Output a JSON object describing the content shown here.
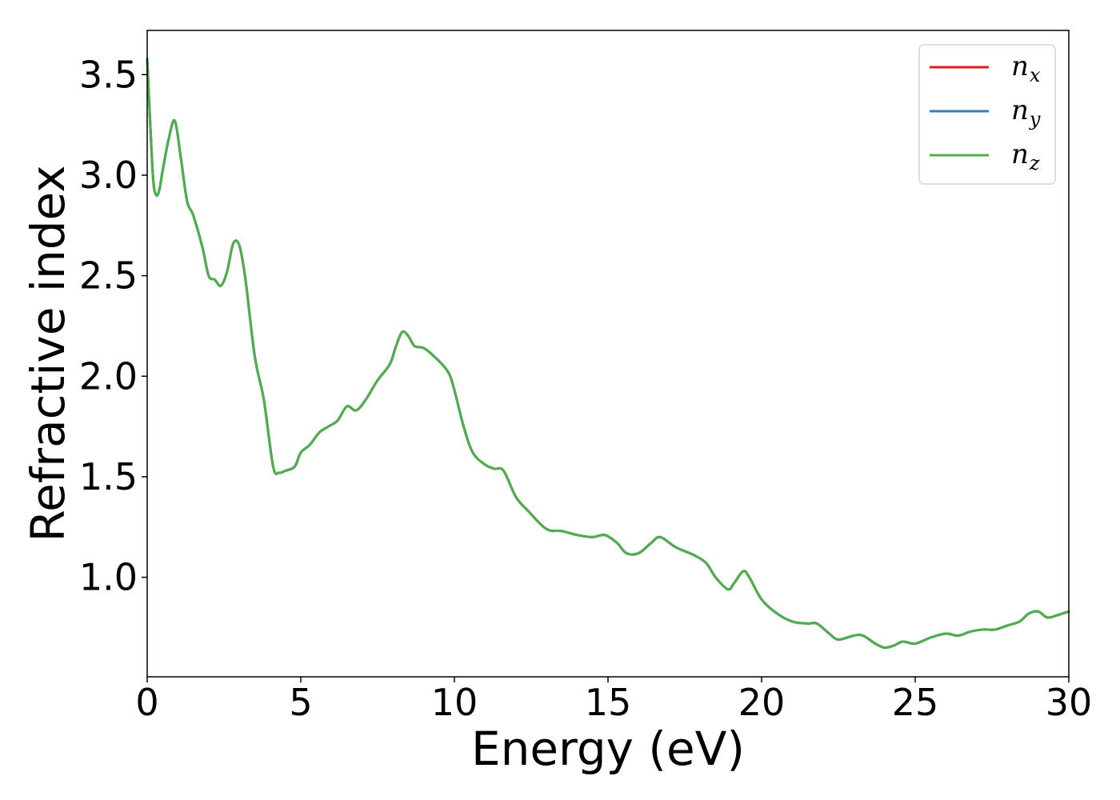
{
  "chart_data": {
    "type": "line",
    "title": "",
    "xlabel": "Energy (eV)",
    "ylabel": "Refractive index",
    "xlim": [
      0,
      30
    ],
    "ylim": [
      0.505,
      3.72
    ],
    "xticks": [
      0,
      5,
      10,
      15,
      20,
      25,
      30
    ],
    "yticks": [
      1.0,
      1.5,
      2.0,
      2.5,
      3.0,
      3.5
    ],
    "xtick_labels": [
      "0",
      "5",
      "10",
      "15",
      "20",
      "25",
      "30"
    ],
    "ytick_labels": [
      "1.0",
      "1.5",
      "2.0",
      "2.5",
      "3.0",
      "3.5"
    ],
    "grid": false,
    "legend": {
      "position": "top-right",
      "entries": [
        {
          "base": "n",
          "sub": "x",
          "color": "#e41a1c"
        },
        {
          "base": "n",
          "sub": "y",
          "color": "#377eb8"
        },
        {
          "base": "n",
          "sub": "z",
          "color": "#4daf4a"
        }
      ]
    },
    "series": [
      {
        "legend_index": 0,
        "color": "#e41a1c",
        "x": [
          0,
          0.1,
          0.2,
          0.3,
          0.4,
          0.5,
          0.7,
          0.9,
          1.1,
          1.3,
          1.5,
          1.8,
          2.0,
          2.2,
          2.4,
          2.6,
          2.8,
          3.0,
          3.2,
          3.5,
          3.8,
          4.1,
          4.3,
          4.5,
          4.8,
          5.0,
          5.3,
          5.6,
          5.9,
          6.2,
          6.5,
          6.8,
          7.1,
          7.5,
          7.9,
          8.1,
          8.3,
          8.5,
          8.7,
          9.0,
          9.4,
          9.8,
          10.0,
          10.3,
          10.6,
          11.0,
          11.3,
          11.6,
          12.0,
          12.4,
          13.0,
          13.5,
          14.0,
          14.5,
          14.9,
          15.3,
          15.6,
          16.0,
          16.4,
          16.7,
          17.2,
          17.8,
          18.2,
          18.5,
          18.9,
          19.1,
          19.4,
          19.6,
          20.0,
          20.5,
          21.0,
          21.5,
          21.8,
          22.2,
          22.5,
          23.0,
          23.3,
          23.7,
          24.0,
          24.3,
          24.6,
          25.0,
          25.5,
          26.0,
          26.4,
          26.8,
          27.2,
          27.6,
          28.0,
          28.4,
          28.7,
          29.0,
          29.3,
          29.6,
          30.0
        ],
        "y": [
          3.58,
          3.25,
          2.97,
          2.9,
          2.93,
          3.02,
          3.18,
          3.27,
          3.08,
          2.87,
          2.8,
          2.64,
          2.5,
          2.48,
          2.45,
          2.52,
          2.66,
          2.65,
          2.48,
          2.1,
          1.88,
          1.55,
          1.52,
          1.53,
          1.55,
          1.62,
          1.66,
          1.72,
          1.75,
          1.78,
          1.85,
          1.83,
          1.88,
          1.98,
          2.06,
          2.15,
          2.22,
          2.2,
          2.15,
          2.14,
          2.09,
          2.02,
          1.93,
          1.75,
          1.62,
          1.56,
          1.54,
          1.53,
          1.4,
          1.33,
          1.24,
          1.23,
          1.21,
          1.2,
          1.21,
          1.17,
          1.12,
          1.12,
          1.17,
          1.2,
          1.15,
          1.11,
          1.07,
          1.0,
          0.94,
          0.97,
          1.03,
          1.0,
          0.89,
          0.82,
          0.78,
          0.77,
          0.77,
          0.72,
          0.69,
          0.71,
          0.71,
          0.67,
          0.65,
          0.66,
          0.68,
          0.67,
          0.7,
          0.72,
          0.71,
          0.73,
          0.74,
          0.74,
          0.76,
          0.78,
          0.82,
          0.83,
          0.8,
          0.81,
          0.83
        ]
      },
      {
        "legend_index": 1,
        "color": "#377eb8",
        "x": [
          0,
          0.1,
          0.2,
          0.3,
          0.4,
          0.5,
          0.7,
          0.9,
          1.1,
          1.3,
          1.5,
          1.8,
          2.0,
          2.2,
          2.4,
          2.6,
          2.8,
          3.0,
          3.2,
          3.5,
          3.8,
          4.1,
          4.3,
          4.5,
          4.8,
          5.0,
          5.3,
          5.6,
          5.9,
          6.2,
          6.5,
          6.8,
          7.1,
          7.5,
          7.9,
          8.1,
          8.3,
          8.5,
          8.7,
          9.0,
          9.4,
          9.8,
          10.0,
          10.3,
          10.6,
          11.0,
          11.3,
          11.6,
          12.0,
          12.4,
          13.0,
          13.5,
          14.0,
          14.5,
          14.9,
          15.3,
          15.6,
          16.0,
          16.4,
          16.7,
          17.2,
          17.8,
          18.2,
          18.5,
          18.9,
          19.1,
          19.4,
          19.6,
          20.0,
          20.5,
          21.0,
          21.5,
          21.8,
          22.2,
          22.5,
          23.0,
          23.3,
          23.7,
          24.0,
          24.3,
          24.6,
          25.0,
          25.5,
          26.0,
          26.4,
          26.8,
          27.2,
          27.6,
          28.0,
          28.4,
          28.7,
          29.0,
          29.3,
          29.6,
          30.0
        ],
        "y": [
          3.58,
          3.25,
          2.97,
          2.9,
          2.93,
          3.02,
          3.18,
          3.27,
          3.08,
          2.87,
          2.8,
          2.64,
          2.5,
          2.48,
          2.45,
          2.52,
          2.66,
          2.65,
          2.48,
          2.1,
          1.88,
          1.55,
          1.52,
          1.53,
          1.55,
          1.62,
          1.66,
          1.72,
          1.75,
          1.78,
          1.85,
          1.83,
          1.88,
          1.98,
          2.06,
          2.15,
          2.22,
          2.2,
          2.15,
          2.14,
          2.09,
          2.02,
          1.93,
          1.75,
          1.62,
          1.56,
          1.54,
          1.53,
          1.4,
          1.33,
          1.24,
          1.23,
          1.21,
          1.2,
          1.21,
          1.17,
          1.12,
          1.12,
          1.17,
          1.2,
          1.15,
          1.11,
          1.07,
          1.0,
          0.94,
          0.97,
          1.03,
          1.0,
          0.89,
          0.82,
          0.78,
          0.77,
          0.77,
          0.72,
          0.69,
          0.71,
          0.71,
          0.67,
          0.65,
          0.66,
          0.68,
          0.67,
          0.7,
          0.72,
          0.71,
          0.73,
          0.74,
          0.74,
          0.76,
          0.78,
          0.82,
          0.83,
          0.8,
          0.81,
          0.83
        ]
      },
      {
        "legend_index": 2,
        "color": "#4daf4a",
        "x": [
          0,
          0.1,
          0.2,
          0.3,
          0.4,
          0.5,
          0.7,
          0.9,
          1.1,
          1.3,
          1.5,
          1.8,
          2.0,
          2.2,
          2.4,
          2.6,
          2.8,
          3.0,
          3.2,
          3.5,
          3.8,
          4.1,
          4.3,
          4.5,
          4.8,
          5.0,
          5.3,
          5.6,
          5.9,
          6.2,
          6.5,
          6.8,
          7.1,
          7.5,
          7.9,
          8.1,
          8.3,
          8.5,
          8.7,
          9.0,
          9.4,
          9.8,
          10.0,
          10.3,
          10.6,
          11.0,
          11.3,
          11.6,
          12.0,
          12.4,
          13.0,
          13.5,
          14.0,
          14.5,
          14.9,
          15.3,
          15.6,
          16.0,
          16.4,
          16.7,
          17.2,
          17.8,
          18.2,
          18.5,
          18.9,
          19.1,
          19.4,
          19.6,
          20.0,
          20.5,
          21.0,
          21.5,
          21.8,
          22.2,
          22.5,
          23.0,
          23.3,
          23.7,
          24.0,
          24.3,
          24.6,
          25.0,
          25.5,
          26.0,
          26.4,
          26.8,
          27.2,
          27.6,
          28.0,
          28.4,
          28.7,
          29.0,
          29.3,
          29.6,
          30.0
        ],
        "y": [
          3.58,
          3.25,
          2.97,
          2.9,
          2.93,
          3.02,
          3.18,
          3.27,
          3.08,
          2.87,
          2.8,
          2.64,
          2.5,
          2.48,
          2.45,
          2.52,
          2.66,
          2.65,
          2.48,
          2.1,
          1.88,
          1.55,
          1.52,
          1.53,
          1.55,
          1.62,
          1.66,
          1.72,
          1.75,
          1.78,
          1.85,
          1.83,
          1.88,
          1.98,
          2.06,
          2.15,
          2.22,
          2.2,
          2.15,
          2.14,
          2.09,
          2.02,
          1.93,
          1.75,
          1.62,
          1.56,
          1.54,
          1.53,
          1.4,
          1.33,
          1.24,
          1.23,
          1.21,
          1.2,
          1.21,
          1.17,
          1.12,
          1.12,
          1.17,
          1.2,
          1.15,
          1.11,
          1.07,
          1.0,
          0.94,
          0.97,
          1.03,
          1.0,
          0.89,
          0.82,
          0.78,
          0.77,
          0.77,
          0.72,
          0.69,
          0.71,
          0.71,
          0.67,
          0.65,
          0.66,
          0.68,
          0.67,
          0.7,
          0.72,
          0.71,
          0.73,
          0.74,
          0.74,
          0.76,
          0.78,
          0.82,
          0.83,
          0.8,
          0.81,
          0.83
        ]
      }
    ]
  }
}
